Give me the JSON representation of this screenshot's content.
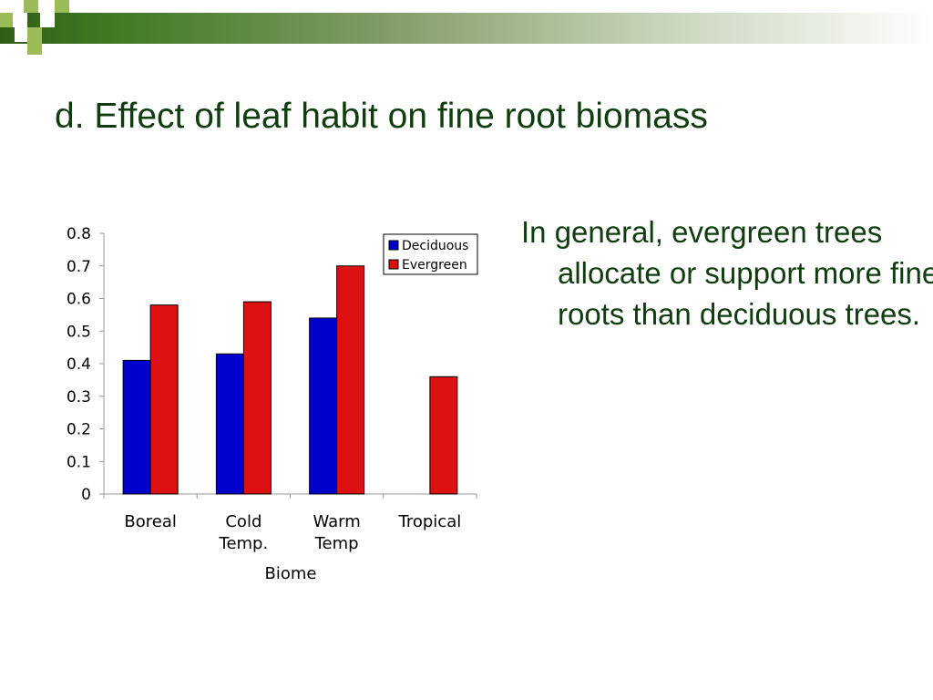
{
  "slide": {
    "title": "d. Effect of leaf habit on fine root biomass",
    "body": "In general, evergreen trees allocate or support more fine roots than deciduous trees."
  },
  "colors": {
    "title_text": "#0f3d0f",
    "banner_dark": "#2f5e16",
    "banner_light": "#9bbb59",
    "deciduous": "#0000cc",
    "evergreen": "#dd1111"
  },
  "chart_data": {
    "type": "bar",
    "categories": [
      [
        "Boreal"
      ],
      [
        "Cold",
        "Temp."
      ],
      [
        "Warm",
        "Temp"
      ],
      [
        "Tropical"
      ]
    ],
    "series": [
      {
        "name": "Deciduous",
        "values": [
          0.41,
          0.43,
          0.54,
          null
        ],
        "color": "#0000cc"
      },
      {
        "name": "Evergreen",
        "values": [
          0.58,
          0.59,
          0.7,
          0.36
        ],
        "color": "#dd1111"
      }
    ],
    "title": "",
    "xlabel": "Biome",
    "ylabel": "",
    "ylim": [
      0,
      0.8
    ],
    "yticks": [
      "0",
      "0.1",
      "0.2",
      "0.3",
      "0.4",
      "0.5",
      "0.6",
      "0.7",
      "0.8"
    ],
    "grid": false,
    "legend_position": "top-right"
  }
}
